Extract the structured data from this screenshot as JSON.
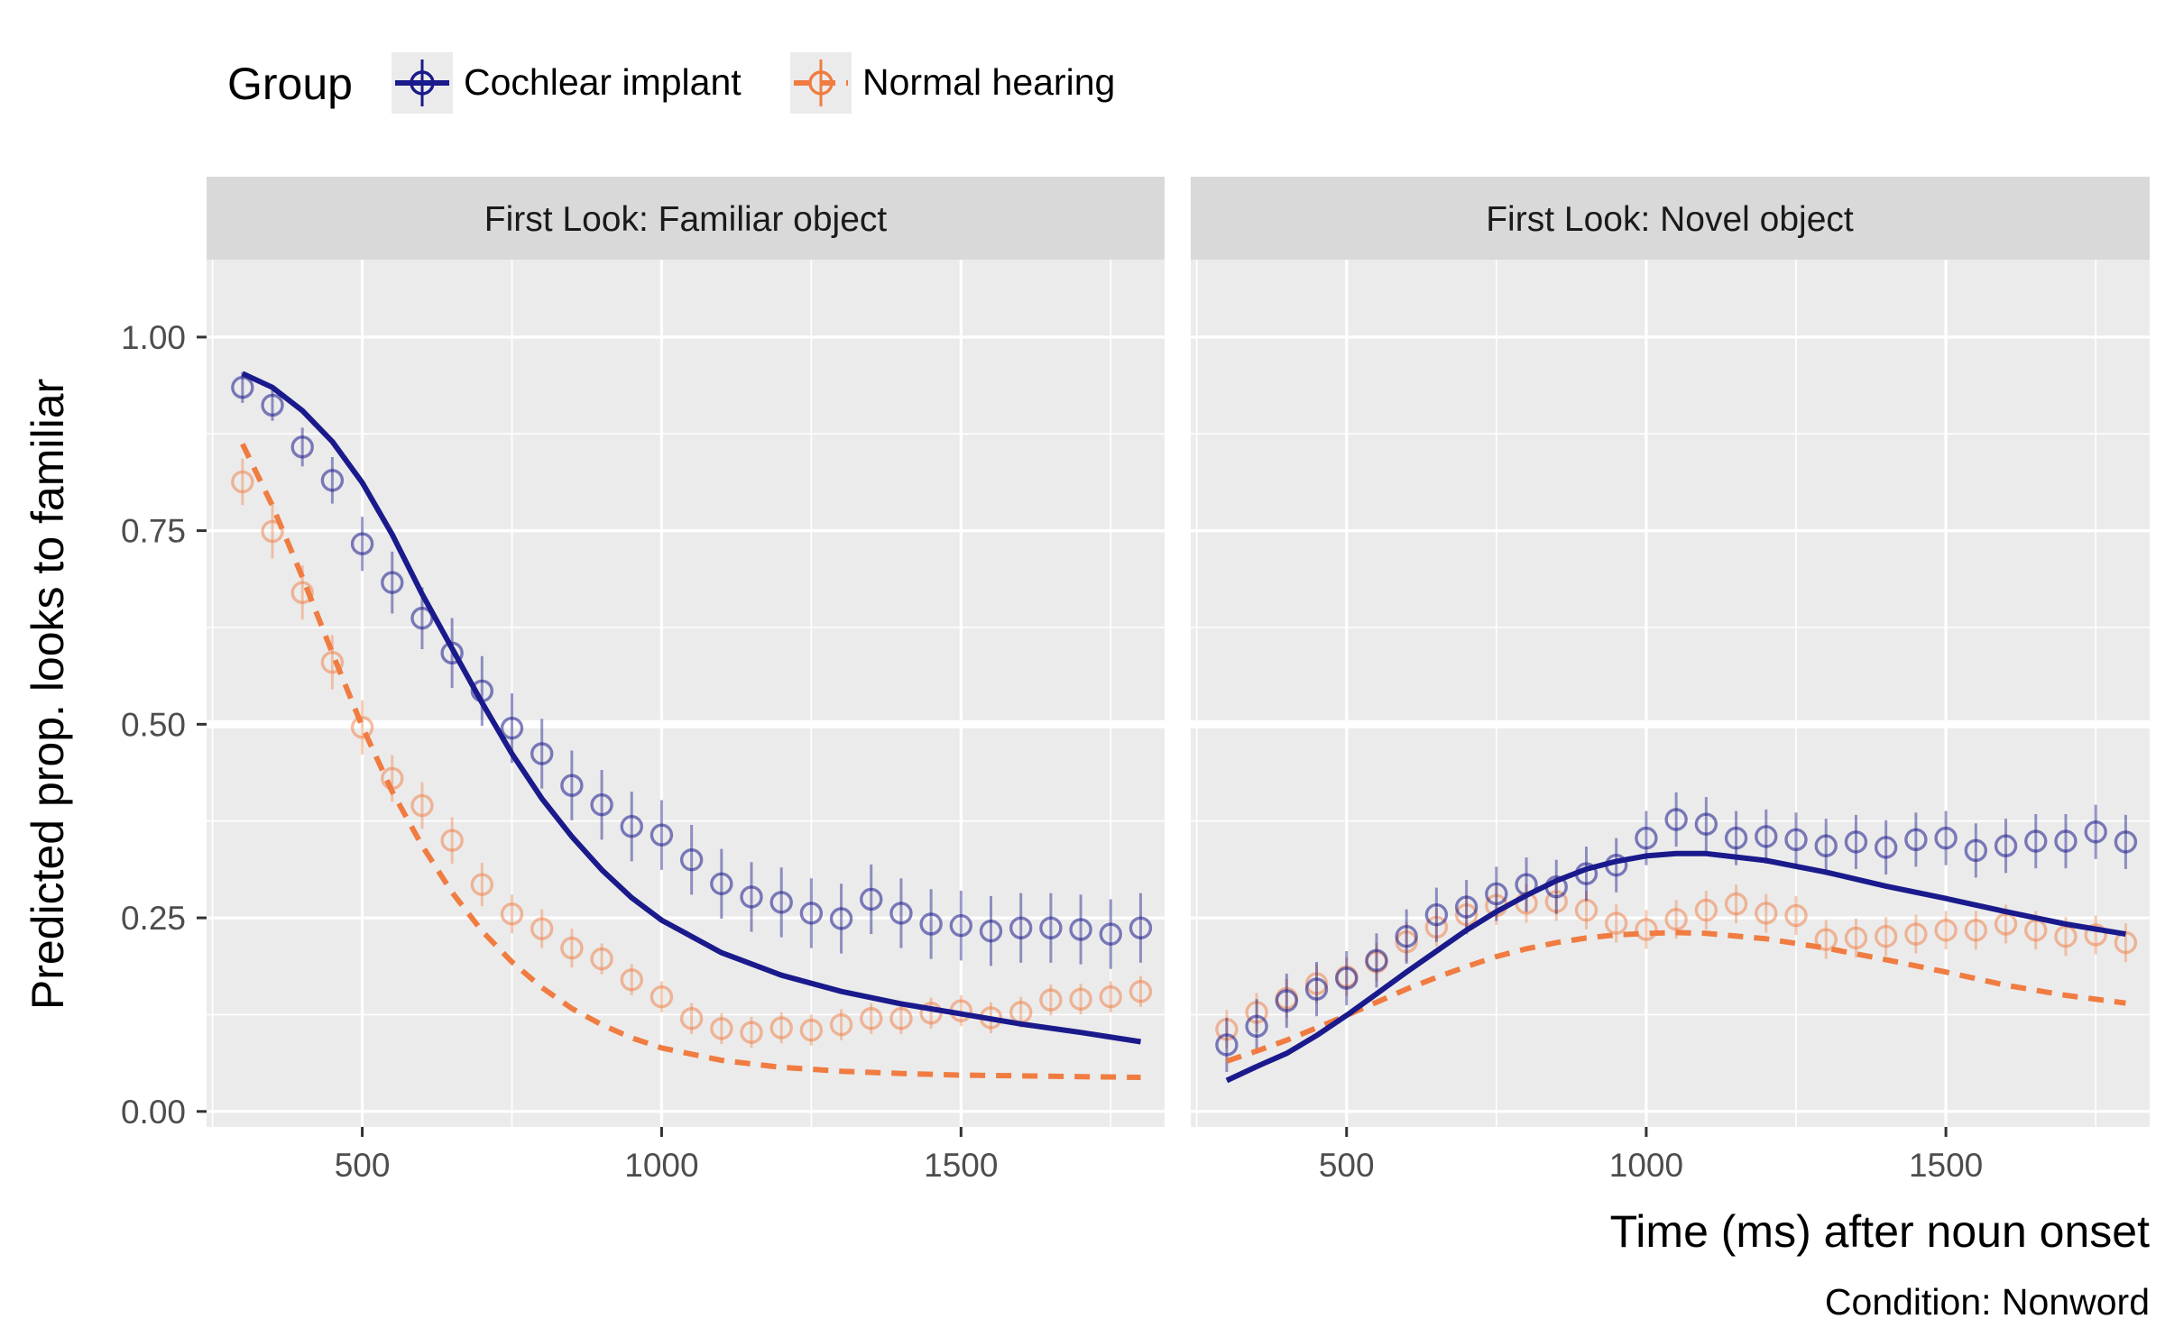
{
  "chart_data": {
    "type": "line",
    "legend": {
      "title": "Group",
      "placement": "top-left",
      "entries": [
        {
          "label": "Cochlear implant",
          "color": "#1a1a8c",
          "line": "solid"
        },
        {
          "label": "Normal hearing",
          "color": "#f07c41",
          "line": "dashed"
        }
      ]
    },
    "xlabel": "Time (ms) after noun onset",
    "ylabel": "Predicted prop. looks to familiar",
    "caption": "Condition: Nonword",
    "xlim": [
      240,
      1840
    ],
    "ylim": [
      -0.02,
      1.1
    ],
    "x_ticks": [
      500,
      1000,
      1500
    ],
    "x_tick_labels": [
      "500",
      "1000",
      "1500"
    ],
    "y_ticks": [
      0.0,
      0.25,
      0.5,
      0.75,
      1.0
    ],
    "y_tick_labels": [
      "0.00",
      "0.25",
      "0.50",
      "0.75",
      "1.00"
    ],
    "reference_line_y": 0.5,
    "colors": {
      "ci": "#1a1a8c",
      "nh": "#f07c41"
    },
    "panels": [
      {
        "title": "First Look: Familiar object",
        "series": [
          {
            "name": "Cochlear implant",
            "key": "ci",
            "points": {
              "x": [
                300,
                350,
                400,
                450,
                500,
                550,
                600,
                650,
                700,
                750,
                800,
                850,
                900,
                950,
                1000,
                1050,
                1100,
                1150,
                1200,
                1250,
                1300,
                1350,
                1400,
                1450,
                1500,
                1550,
                1600,
                1650,
                1700,
                1750,
                1800
              ],
              "y": [
                0.935,
                0.912,
                0.858,
                0.815,
                0.733,
                0.683,
                0.637,
                0.592,
                0.543,
                0.495,
                0.462,
                0.421,
                0.396,
                0.368,
                0.357,
                0.325,
                0.294,
                0.277,
                0.27,
                0.256,
                0.249,
                0.274,
                0.256,
                0.242,
                0.24,
                0.233,
                0.237,
                0.237,
                0.235,
                0.229,
                0.237
              ],
              "err": [
                0.02,
                0.02,
                0.025,
                0.03,
                0.035,
                0.04,
                0.04,
                0.045,
                0.045,
                0.045,
                0.045,
                0.045,
                0.045,
                0.045,
                0.045,
                0.045,
                0.045,
                0.045,
                0.045,
                0.045,
                0.045,
                0.045,
                0.045,
                0.045,
                0.045,
                0.045,
                0.045,
                0.045,
                0.045,
                0.045,
                0.045
              ]
            },
            "curve": {
              "x": [
                300,
                350,
                400,
                450,
                500,
                550,
                600,
                650,
                700,
                750,
                800,
                850,
                900,
                950,
                1000,
                1100,
                1200,
                1300,
                1400,
                1500,
                1600,
                1700,
                1800
              ],
              "y": [
                0.953,
                0.935,
                0.905,
                0.865,
                0.812,
                0.745,
                0.668,
                0.598,
                0.528,
                0.462,
                0.404,
                0.355,
                0.312,
                0.276,
                0.247,
                0.205,
                0.176,
                0.155,
                0.139,
                0.126,
                0.113,
                0.102,
                0.09
              ]
            }
          },
          {
            "name": "Normal hearing",
            "key": "nh",
            "points": {
              "x": [
                300,
                350,
                400,
                450,
                500,
                550,
                600,
                650,
                700,
                750,
                800,
                850,
                900,
                950,
                1000,
                1050,
                1100,
                1150,
                1200,
                1250,
                1300,
                1350,
                1400,
                1450,
                1500,
                1550,
                1600,
                1650,
                1700,
                1750,
                1800
              ],
              "y": [
                0.813,
                0.749,
                0.67,
                0.58,
                0.496,
                0.43,
                0.395,
                0.35,
                0.293,
                0.255,
                0.236,
                0.211,
                0.197,
                0.17,
                0.148,
                0.12,
                0.107,
                0.102,
                0.108,
                0.105,
                0.112,
                0.12,
                0.12,
                0.127,
                0.13,
                0.121,
                0.128,
                0.144,
                0.145,
                0.148,
                0.155
              ],
              "err": [
                0.03,
                0.035,
                0.035,
                0.035,
                0.035,
                0.03,
                0.03,
                0.03,
                0.028,
                0.025,
                0.025,
                0.025,
                0.02,
                0.02,
                0.02,
                0.02,
                0.02,
                0.02,
                0.02,
                0.02,
                0.02,
                0.02,
                0.02,
                0.02,
                0.02,
                0.02,
                0.02,
                0.02,
                0.02,
                0.02,
                0.02
              ]
            },
            "curve": {
              "x": [
                300,
                350,
                400,
                450,
                500,
                550,
                600,
                650,
                700,
                750,
                800,
                850,
                900,
                950,
                1000,
                1100,
                1200,
                1300,
                1400,
                1500,
                1600,
                1700,
                1800
              ],
              "y": [
                0.862,
                0.782,
                0.69,
                0.592,
                0.497,
                0.413,
                0.343,
                0.283,
                0.233,
                0.193,
                0.16,
                0.133,
                0.112,
                0.095,
                0.082,
                0.066,
                0.057,
                0.052,
                0.049,
                0.047,
                0.046,
                0.045,
                0.044
              ]
            }
          }
        ]
      },
      {
        "title": "First Look: Novel object",
        "series": [
          {
            "name": "Cochlear implant",
            "key": "ci",
            "points": {
              "x": [
                300,
                350,
                400,
                450,
                500,
                550,
                600,
                650,
                700,
                750,
                800,
                850,
                900,
                950,
                1000,
                1050,
                1100,
                1150,
                1200,
                1250,
                1300,
                1350,
                1400,
                1450,
                1500,
                1550,
                1600,
                1650,
                1700,
                1750,
                1800
              ],
              "y": [
                0.086,
                0.11,
                0.143,
                0.158,
                0.172,
                0.195,
                0.226,
                0.254,
                0.264,
                0.281,
                0.293,
                0.29,
                0.307,
                0.318,
                0.353,
                0.377,
                0.371,
                0.353,
                0.355,
                0.351,
                0.343,
                0.348,
                0.341,
                0.351,
                0.353,
                0.337,
                0.343,
                0.349,
                0.349,
                0.361,
                0.348
              ]
            },
            "curve_unused": null,
            "curve": {
              "x": [
                300,
                350,
                400,
                450,
                500,
                550,
                600,
                650,
                700,
                750,
                800,
                850,
                900,
                950,
                1000,
                1050,
                1100,
                1200,
                1300,
                1400,
                1500,
                1600,
                1700,
                1800
              ],
              "y": [
                0.04,
                0.058,
                0.075,
                0.098,
                0.124,
                0.152,
                0.18,
                0.207,
                0.234,
                0.258,
                0.279,
                0.298,
                0.313,
                0.323,
                0.33,
                0.333,
                0.333,
                0.324,
                0.309,
                0.291,
                0.275,
                0.258,
                0.242,
                0.229
              ]
            }
          },
          {
            "name": "Normal hearing",
            "key": "nh",
            "points": {
              "x": [
                300,
                350,
                400,
                450,
                500,
                550,
                600,
                650,
                700,
                750,
                800,
                850,
                900,
                950,
                1000,
                1050,
                1100,
                1150,
                1200,
                1250,
                1300,
                1350,
                1400,
                1450,
                1500,
                1550,
                1600,
                1650,
                1700,
                1750,
                1800
              ],
              "y": [
                0.106,
                0.128,
                0.146,
                0.165,
                0.174,
                0.193,
                0.219,
                0.238,
                0.254,
                0.266,
                0.269,
                0.271,
                0.26,
                0.243,
                0.235,
                0.248,
                0.26,
                0.268,
                0.256,
                0.253,
                0.222,
                0.224,
                0.226,
                0.229,
                0.234,
                0.234,
                0.242,
                0.234,
                0.226,
                0.228,
                0.218
              ]
            },
            "curve": {
              "x": [
                300,
                350,
                400,
                450,
                500,
                550,
                600,
                650,
                700,
                750,
                800,
                850,
                900,
                950,
                1000,
                1050,
                1100,
                1200,
                1300,
                1400,
                1500,
                1600,
                1700,
                1800
              ],
              "y": [
                0.065,
                0.078,
                0.092,
                0.108,
                0.124,
                0.141,
                0.158,
                0.173,
                0.187,
                0.2,
                0.21,
                0.218,
                0.224,
                0.228,
                0.23,
                0.231,
                0.23,
                0.223,
                0.211,
                0.196,
                0.18,
                0.163,
                0.15,
                0.14
              ]
            }
          }
        ]
      }
    ]
  }
}
